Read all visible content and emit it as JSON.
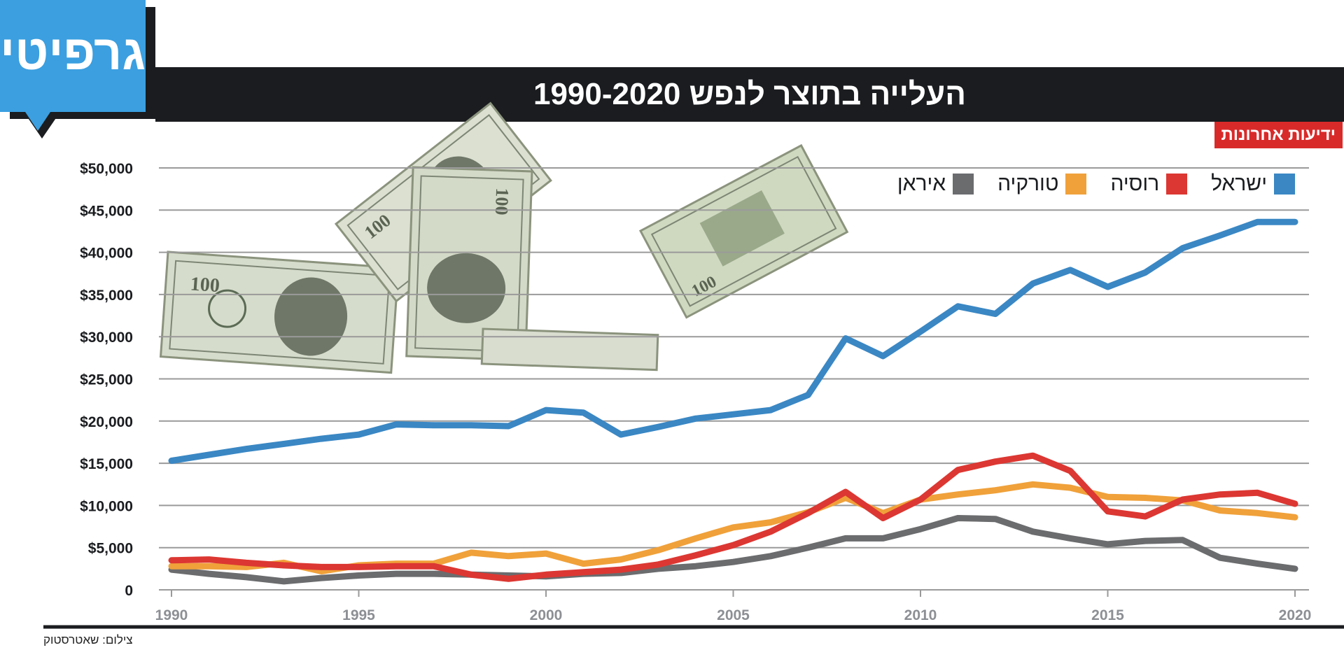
{
  "brand": {
    "logo_text": "גרפיטי",
    "logo_color": "#3b9fe0"
  },
  "title": "העלייה בתוצר לנפש 1990-2020",
  "source_badge": "ידיעות אחרונות",
  "credit": "צילום: שאטרסטוק",
  "chart_data": {
    "type": "line",
    "title": "העלייה בתוצר לנפש 1990-2020",
    "xlabel": "",
    "ylabel": "",
    "ylim": [
      0,
      50000
    ],
    "xlim": [
      1990,
      2020
    ],
    "y_ticks": [
      "0",
      "$5,000",
      "$10,000",
      "$15,000",
      "$20,000",
      "$25,000",
      "$30,000",
      "$35,000",
      "$40,000",
      "$45,000",
      "$50,000"
    ],
    "y_tick_values": [
      0,
      5000,
      10000,
      15000,
      20000,
      25000,
      30000,
      35000,
      40000,
      45000,
      50000
    ],
    "x_ticks": [
      "1990",
      "1995",
      "2000",
      "2005",
      "2010",
      "2015",
      "2020"
    ],
    "x_tick_values": [
      1990,
      1995,
      2000,
      2005,
      2010,
      2015,
      2020
    ],
    "grid": true,
    "legend_position": "top-right",
    "x": [
      1990,
      1991,
      1992,
      1993,
      1994,
      1995,
      1996,
      1997,
      1998,
      1999,
      2000,
      2001,
      2002,
      2003,
      2004,
      2005,
      2006,
      2007,
      2008,
      2009,
      2010,
      2011,
      2012,
      2013,
      2014,
      2015,
      2016,
      2017,
      2018,
      2019,
      2020
    ],
    "series": [
      {
        "name": "ישראל",
        "color": "#3a87c4",
        "values": [
          15300,
          16000,
          16700,
          17300,
          17900,
          18400,
          19600,
          19500,
          19500,
          19400,
          21300,
          21000,
          18400,
          19300,
          20300,
          20800,
          21300,
          23100,
          29800,
          27700,
          30600,
          33600,
          32700,
          36300,
          37900,
          35900,
          37600,
          40500,
          42000,
          43600,
          43600
        ]
      },
      {
        "name": "רוסיה",
        "color": "#dc3732",
        "values": [
          3500,
          3600,
          3200,
          2900,
          2700,
          2700,
          2800,
          2800,
          1800,
          1300,
          1800,
          2100,
          2400,
          3000,
          4100,
          5300,
          6900,
          9100,
          11600,
          8500,
          10700,
          14200,
          15200,
          15900,
          14100,
          9300,
          8700,
          10700,
          11300,
          11500,
          10200
        ]
      },
      {
        "name": "טורקיה",
        "color": "#f0a13a",
        "values": [
          2800,
          2800,
          2700,
          3200,
          2200,
          2900,
          3100,
          3100,
          4400,
          4000,
          4300,
          3100,
          3600,
          4700,
          6100,
          7400,
          8000,
          9200,
          10900,
          9100,
          10700,
          11300,
          11800,
          12500,
          12100,
          11000,
          10900,
          10600,
          9400,
          9100,
          8600
        ]
      },
      {
        "name": "איראן",
        "color": "#6b6c6e",
        "values": [
          2400,
          1900,
          1500,
          1000,
          1400,
          1700,
          1900,
          1900,
          1800,
          1700,
          1600,
          1900,
          2000,
          2500,
          2800,
          3300,
          4000,
          5000,
          6100,
          6100,
          7200,
          8500,
          8400,
          6900,
          6100,
          5400,
          5800,
          5900,
          3800,
          3100,
          2500
        ]
      }
    ]
  }
}
